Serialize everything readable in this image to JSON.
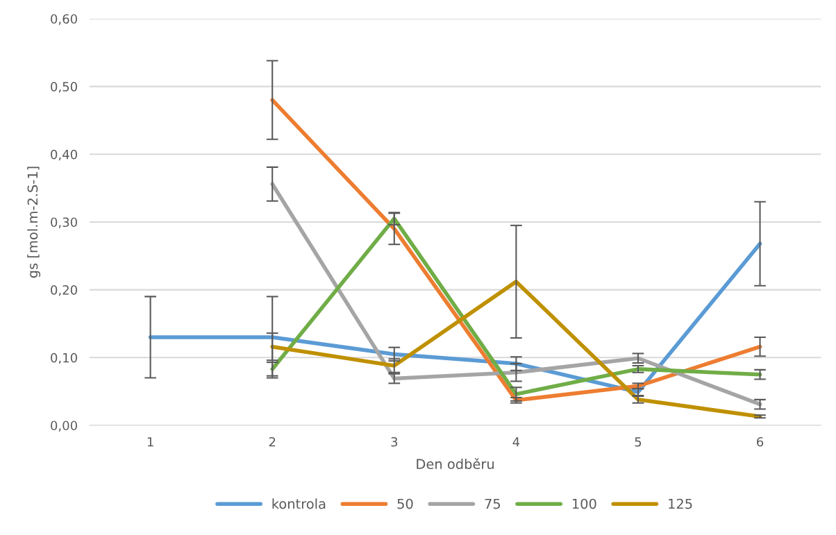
{
  "chart_data": {
    "type": "line",
    "xlabel": "Den odběru",
    "ylabel": "gs [mol.m-2.S-1]",
    "categories": [
      "1",
      "2",
      "3",
      "4",
      "5",
      "6"
    ],
    "series": [
      {
        "name": "kontrola",
        "color": "#5b9bd5",
        "values": [
          0.13,
          0.13,
          0.105,
          0.091,
          0.049,
          0.268
        ],
        "errors": [
          0.06,
          0.06,
          0.01,
          0.01,
          0.005,
          0.062
        ]
      },
      {
        "name": "50",
        "color": "#ed7d31",
        "values": [
          null,
          0.48,
          0.29,
          0.037,
          0.058,
          0.116
        ],
        "errors": [
          null,
          0.058,
          0.023,
          0.004,
          0.004,
          0.014
        ]
      },
      {
        "name": "75",
        "color": "#a5a5a5",
        "values": [
          null,
          0.356,
          0.069,
          0.078,
          0.099,
          0.031
        ],
        "errors": [
          null,
          0.025,
          0.007,
          0.013,
          0.007,
          0.007
        ]
      },
      {
        "name": "100",
        "color": "#70ad47",
        "values": [
          null,
          0.083,
          0.305,
          0.046,
          0.083,
          0.075
        ],
        "errors": [
          null,
          0.01,
          0.009,
          0.01,
          0.005,
          0.007
        ]
      },
      {
        "name": "125",
        "color": "#bf9000",
        "values": [
          null,
          0.116,
          0.088,
          0.212,
          0.038,
          0.013
        ],
        "errors": [
          null,
          0.02,
          0.01,
          0.083,
          0.005,
          0.002
        ]
      }
    ],
    "ylim": [
      0,
      0.6
    ],
    "yticks": [
      {
        "value": 0,
        "label": "0,00"
      },
      {
        "value": 0.1,
        "label": "0,10"
      },
      {
        "value": 0.2,
        "label": "0,20"
      },
      {
        "value": 0.3,
        "label": "0,30"
      },
      {
        "value": 0.4,
        "label": "0,40"
      },
      {
        "value": 0.5,
        "label": "0,50"
      },
      {
        "value": 0.6,
        "label": "0,60"
      }
    ],
    "grid": "y",
    "legend": "bottom",
    "marker": "none",
    "line_style": "solid"
  }
}
